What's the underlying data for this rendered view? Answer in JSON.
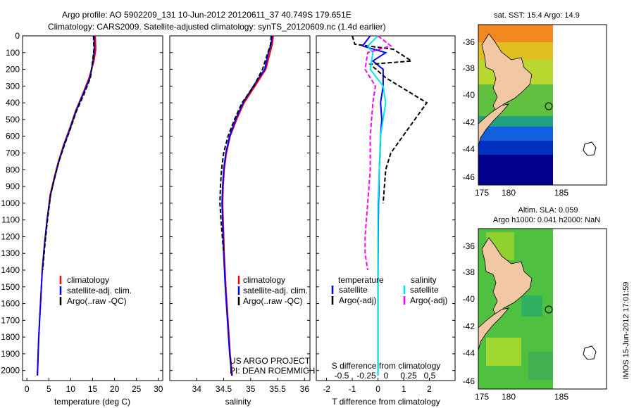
{
  "header": {
    "line1": "Argo profile: AO 5902209_131 10-Jun-2012 20120611_37 40.749S 179.651E",
    "line2": "Climatology: CARS2009. Satellite-adjusted climatology: synTS_20120609.nc (1.4d earlier)"
  },
  "side_label": "IMOS 15-Jun-2012 17:01:59",
  "colors": {
    "climatology": "#ff0000",
    "satellite": "#0000ff",
    "argo": "#000000",
    "sal_satellite": "#00e5ee",
    "sal_argo": "#ff00ff",
    "land": "#f2c8a4",
    "frame": "#000000"
  },
  "panels": {
    "temperature": {
      "xlabel": "temperature (deg C)",
      "legend": [
        "climatology",
        "satellite-adj. clim.",
        "Argo(..raw -QC)"
      ]
    },
    "salinity": {
      "xlabel": "salinity",
      "legend": [
        "climatology",
        "satellite-adj. clim.",
        "Argo(..raw -QC)"
      ],
      "note1": "US ARGO PROJECT",
      "note2": "PI: DEAN ROEMMICH"
    },
    "difference": {
      "xlabel": "T difference from climatology",
      "top_label": "S difference from climatology",
      "legend_left_title": "temperature",
      "legend_right_title": "salinity",
      "legend_left": [
        "satellite",
        "Argo(-adj)"
      ],
      "legend_right": [
        "satellite",
        "Argo(-adj)"
      ]
    }
  },
  "maps": {
    "sst": {
      "title": "sat. SST: 15.4  Argo: 14.9"
    },
    "sla": {
      "title1": "Altim. SLA: 0.059",
      "title2": "Argo h1000: 0.041 h2000: NaN"
    },
    "x_ticks": [
      "175",
      "180",
      "185"
    ],
    "y_ticks": [
      "-36",
      "-38",
      "-40",
      "-42",
      "-44",
      "-46"
    ]
  },
  "chart_data": [
    {
      "type": "line",
      "name": "temperature",
      "xlabel": "temperature (deg C)",
      "ylabel": "",
      "xlim": [
        -1,
        31
      ],
      "ylim": [
        2060,
        0
      ],
      "x_ticks": [
        0,
        5,
        10,
        15,
        20,
        25,
        30
      ],
      "y_ticks": [
        0,
        100,
        200,
        300,
        400,
        500,
        600,
        700,
        800,
        900,
        1000,
        1100,
        1200,
        1300,
        1400,
        1500,
        1600,
        1700,
        1800,
        1900,
        2000
      ],
      "series": [
        {
          "name": "climatology",
          "color": "#ff0000",
          "x": [
            15.6,
            15.7,
            15.3,
            14.2,
            12.7,
            11.1,
            9.8,
            8.4,
            7.2,
            6.2,
            5.3,
            4.6,
            4.0,
            3.5,
            3.1,
            2.7,
            2.4
          ],
          "y": [
            0,
            80,
            150,
            250,
            350,
            450,
            550,
            650,
            750,
            850,
            950,
            1100,
            1250,
            1400,
            1600,
            1800,
            2030
          ]
        },
        {
          "name": "satellite-adj. clim.",
          "color": "#0000ff",
          "x": [
            15.3,
            15.4,
            15.1,
            14.4,
            12.8,
            11.2,
            9.9,
            8.5,
            7.3,
            6.3,
            5.4,
            4.6,
            4.0,
            3.5,
            3.1,
            2.7,
            2.4
          ],
          "y": [
            0,
            80,
            150,
            250,
            350,
            450,
            550,
            650,
            750,
            850,
            950,
            1100,
            1250,
            1400,
            1600,
            1800,
            2030
          ]
        },
        {
          "name": "Argo(..raw -QC)",
          "color": "#000000",
          "dash": true,
          "x": [
            15.2,
            15.3,
            15.0,
            14.5,
            13.0,
            11.3,
            10.0,
            8.6,
            7.3,
            6.3,
            5.4,
            4.7,
            4.1,
            3.6
          ],
          "y": [
            0,
            80,
            150,
            250,
            350,
            450,
            550,
            650,
            750,
            850,
            950,
            1100,
            1250,
            1400
          ]
        }
      ]
    },
    {
      "type": "line",
      "name": "salinity",
      "xlabel": "salinity",
      "ylabel": "",
      "xlim": [
        33.5,
        36.1
      ],
      "ylim": [
        2060,
        0
      ],
      "x_ticks": [
        34,
        34.5,
        35,
        35.5,
        36
      ],
      "series": [
        {
          "name": "climatology",
          "color": "#ff0000",
          "x": [
            35.42,
            35.4,
            35.36,
            35.28,
            35.08,
            34.88,
            34.74,
            34.62,
            34.55,
            34.51,
            34.49,
            34.48,
            34.49,
            34.51,
            34.54,
            34.58,
            34.62,
            34.66
          ],
          "y": [
            0,
            50,
            100,
            200,
            300,
            400,
            500,
            600,
            700,
            800,
            900,
            1000,
            1100,
            1300,
            1500,
            1700,
            1900,
            2030
          ]
        },
        {
          "name": "satellite-adj. clim.",
          "color": "#0000ff",
          "x": [
            35.4,
            35.38,
            35.33,
            35.26,
            35.05,
            34.86,
            34.72,
            34.61,
            34.54,
            34.5,
            34.48,
            34.47,
            34.48,
            34.5,
            34.53,
            34.57,
            34.61,
            34.65
          ],
          "y": [
            0,
            50,
            100,
            200,
            300,
            400,
            500,
            600,
            700,
            800,
            900,
            1000,
            1100,
            1300,
            1500,
            1700,
            1900,
            2030
          ]
        },
        {
          "name": "Argo(..raw -QC)",
          "color": "#000000",
          "dash": true,
          "x": [
            35.38,
            35.37,
            35.32,
            35.22,
            35.06,
            34.84,
            34.7,
            34.58,
            34.5,
            34.46,
            34.44,
            34.43,
            34.45,
            34.5
          ],
          "y": [
            0,
            50,
            100,
            200,
            300,
            400,
            500,
            600,
            700,
            800,
            900,
            1000,
            1100,
            1300
          ]
        }
      ]
    },
    {
      "type": "line",
      "name": "difference",
      "xlabel": "T difference from climatology",
      "top_label": "S difference from climatology",
      "xlim": [
        -2.4,
        3.0
      ],
      "ylim": [
        2060,
        0
      ],
      "x_ticks": [
        -2,
        -1,
        0,
        1,
        2
      ],
      "s_ticks": [
        "-0.5",
        "-0.25",
        "0",
        "0.25",
        "0.5"
      ],
      "series": [
        {
          "name": "temperature satellite",
          "color": "#0000ff",
          "x": [
            -0.3,
            -0.6,
            0.3,
            -0.2,
            0.2,
            0.2,
            0.1,
            0.15,
            0.1,
            0.08,
            0.05,
            0.04,
            0.02,
            0.01,
            0.0,
            0.0
          ],
          "y": [
            0,
            60,
            100,
            150,
            200,
            300,
            400,
            500,
            600,
            700,
            800,
            900,
            1000,
            1200,
            1500,
            2030
          ]
        },
        {
          "name": "temperature Argo(-adj)",
          "color": "#000000",
          "dash": true,
          "x": [
            -1.0,
            -0.9,
            0.6,
            1.3,
            -0.3,
            0.3,
            1.9,
            1.2,
            0.5,
            0.3,
            0.25,
            0.2
          ],
          "y": [
            0,
            50,
            80,
            150,
            170,
            250,
            400,
            550,
            700,
            800,
            900,
            1000
          ]
        },
        {
          "name": "salinity satellite",
          "color": "#00e5ee",
          "x": [
            0.0,
            -0.4,
            -0.2,
            -0.3,
            0.2,
            0.3,
            0.1,
            0.05,
            0.0,
            0.0,
            0.0
          ],
          "y": [
            0,
            60,
            100,
            200,
            300,
            400,
            600,
            800,
            1000,
            1500,
            2030
          ]
        },
        {
          "name": "salinity Argo(-adj)",
          "color": "#ff00ff",
          "dash": true,
          "x": [
            0.0,
            0.5,
            -0.4,
            -0.5,
            -0.1,
            -0.2,
            -0.3,
            -0.3,
            -0.4,
            -0.5,
            -0.5,
            -0.4
          ],
          "y": [
            0,
            60,
            100,
            200,
            300,
            400,
            600,
            800,
            1000,
            1200,
            1300,
            1400
          ]
        }
      ]
    }
  ]
}
